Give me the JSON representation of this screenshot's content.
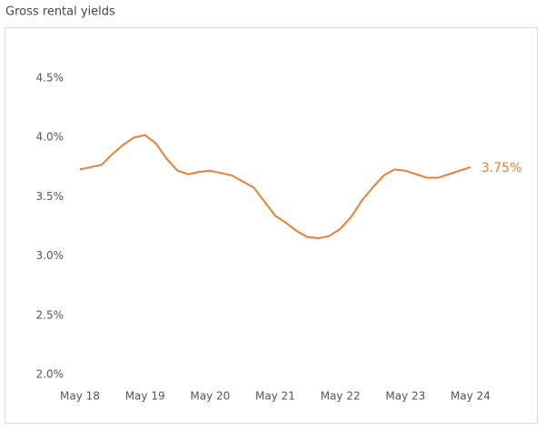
{
  "chart_data": {
    "type": "line",
    "title": "Gross rental yields",
    "categories": [
      "May 18",
      null,
      null,
      null,
      null,
      null,
      "May 19",
      null,
      null,
      null,
      null,
      null,
      "May 20",
      null,
      null,
      null,
      null,
      null,
      "May 21",
      null,
      null,
      null,
      null,
      null,
      "May 22",
      null,
      null,
      null,
      null,
      null,
      "May 23",
      null,
      null,
      null,
      null,
      null,
      "May 24"
    ],
    "series": [
      {
        "name": "Gross rental yields",
        "color": "#ef7d32",
        "values": [
          3.73,
          3.75,
          3.77,
          3.86,
          3.94,
          4.0,
          4.02,
          3.95,
          3.82,
          3.72,
          3.69,
          3.71,
          3.72,
          3.7,
          3.68,
          3.63,
          3.58,
          3.46,
          3.34,
          3.28,
          3.21,
          3.16,
          3.15,
          3.17,
          3.23,
          3.33,
          3.47,
          3.58,
          3.68,
          3.73,
          3.72,
          3.69,
          3.66,
          3.66,
          3.69,
          3.72,
          3.75
        ],
        "value_labels": [
          null,
          null,
          null,
          null,
          null,
          null,
          null,
          null,
          null,
          null,
          null,
          null,
          null,
          null,
          null,
          null,
          null,
          null,
          null,
          null,
          null,
          null,
          null,
          null,
          null,
          null,
          null,
          null,
          null,
          null,
          null,
          null,
          null,
          null,
          null,
          null,
          "3.75%"
        ]
      }
    ],
    "ylim": [
      2.0,
      4.5
    ],
    "yticks": [
      {
        "value": 2.0,
        "label": "2.0%"
      },
      {
        "value": 2.5,
        "label": "2.5%"
      },
      {
        "value": 3.0,
        "label": "3.0%"
      },
      {
        "value": 3.5,
        "label": "3.5%"
      },
      {
        "value": 4.0,
        "label": "4.0%"
      },
      {
        "value": 4.5,
        "label": "4.5%"
      }
    ],
    "grid": false
  }
}
